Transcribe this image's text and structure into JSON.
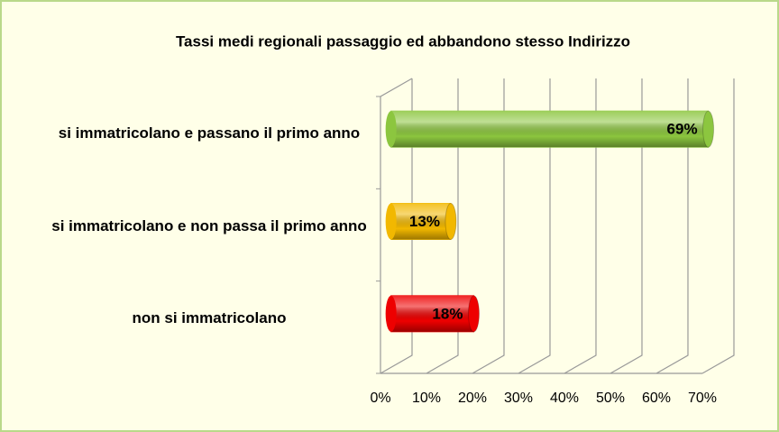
{
  "chart_data": {
    "type": "bar",
    "orientation": "horizontal",
    "title": "Tassi medi regionali passaggio ed abbandono stesso Indirizzo",
    "categories": [
      "si immatricolano e passano il primo anno",
      "si immatricolano e non passa il primo anno",
      "non si immatricolano"
    ],
    "values": [
      69,
      13,
      18
    ],
    "value_labels": [
      "69%",
      "13%",
      "18%"
    ],
    "colors": [
      "#8cc63f",
      "#f2b800",
      "#ee0000"
    ],
    "xlim": [
      0,
      70
    ],
    "xticks": [
      {
        "value": 0,
        "label": "0%"
      },
      {
        "value": 10,
        "label": "10%"
      },
      {
        "value": 20,
        "label": "20%"
      },
      {
        "value": 30,
        "label": "30%"
      },
      {
        "value": 40,
        "label": "40%"
      },
      {
        "value": 50,
        "label": "50%"
      },
      {
        "value": 60,
        "label": "60%"
      },
      {
        "value": 70,
        "label": "70%"
      }
    ],
    "grid": true
  }
}
